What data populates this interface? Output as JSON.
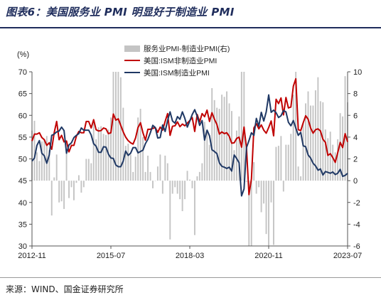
{
  "title": "图表6：美国服务业 PMI 明显好于制造业 PMI",
  "source": "来源：WIND、国金证券研究所",
  "chart_data": {
    "type": "bar+line",
    "left_unit_label": "(%)",
    "left_axis": {
      "min": 30,
      "max": 70,
      "step": 5
    },
    "right_axis": {
      "min": -6,
      "max": 10,
      "step": 2
    },
    "x_ticks": [
      "2012-11",
      "2015-07",
      "2018-03",
      "2020-11",
      "2023-07"
    ],
    "x_tick_index": [
      0,
      32,
      64,
      96,
      128
    ],
    "n_months": 129,
    "legend": [
      "服务业PMI-制造业PMI(右)",
      "美国:ISM非制造业PMI",
      "美国:ISM制造业PMI"
    ],
    "colors": {
      "bar": "#c4c4c4",
      "nonmfg": "#c00000",
      "mfg": "#1f3864"
    },
    "series": [
      {
        "name": "美国:ISM非制造业PMI",
        "axis": "left",
        "values": [
          54.1,
          55.7,
          55.7,
          56.0,
          54.9,
          54.4,
          53.1,
          53.7,
          52.2,
          56.0,
          58.6,
          54.4,
          55.4,
          53.9,
          54.1,
          51.6,
          53.1,
          53.1,
          55.2,
          56.3,
          56.0,
          56.0,
          58.6,
          58.6,
          57.1,
          59.0,
          56.7,
          56.4,
          56.5,
          57.1,
          56.9,
          55.8,
          56.0,
          60.3,
          58.9,
          59.2,
          57.7,
          56.2,
          55.0,
          54.2,
          53.7,
          53.4,
          54.8,
          57.2,
          58.3,
          56.0,
          54.3,
          56.8,
          56.8,
          57.0,
          57.2,
          56.1,
          57.3,
          56.6,
          58.6,
          60.4,
          55.4,
          57.5,
          57.6,
          58.5,
          57.4,
          58.0,
          57.6,
          58.2,
          58.8,
          59.5,
          56.3,
          60.2,
          58.5,
          60.4,
          59.7,
          61.2,
          58.6,
          60.6,
          59.1,
          57.9,
          55.7,
          56.2,
          55.8,
          56.0,
          55.2,
          53.6,
          53.7,
          54.7,
          55.0,
          52.7,
          57.3,
          52.5,
          41.8,
          45.4,
          57.1,
          58.1,
          56.9,
          57.8,
          56.6,
          55.9,
          57.2,
          58.7,
          55.3,
          63.7,
          62.7,
          64.0,
          60.1,
          64.1,
          61.7,
          61.9,
          66.7,
          68.4,
          56.7,
          56.5,
          58.3,
          59.9,
          59.1,
          57.1,
          55.9,
          56.7,
          56.9,
          56.4,
          54.5,
          53.8,
          50.8,
          51.2,
          50.3,
          49.2,
          51.4,
          53.8,
          52.6,
          55.8,
          53.9
        ]
      },
      {
        "name": "美国:ISM制造业PMI",
        "axis": "left",
        "values": [
          49.5,
          50.2,
          53.1,
          54.2,
          51.3,
          50.7,
          49.0,
          50.9,
          55.4,
          55.7,
          56.2,
          56.4,
          57.3,
          56.5,
          51.3,
          53.2,
          53.7,
          54.9,
          55.4,
          55.8,
          57.1,
          56.6,
          56.6,
          56.6,
          55.5,
          53.5,
          52.9,
          51.5,
          51.5,
          52.8,
          52.7,
          51.1,
          50.2,
          50.1,
          48.6,
          48.2,
          48.2,
          49.5,
          51.8,
          50.8,
          51.3,
          52.6,
          52.6,
          51.4,
          51.7,
          52.0,
          53.5,
          54.5,
          56.0,
          57.7,
          57.2,
          54.8,
          54.9,
          57.8,
          56.3,
          58.8,
          60.8,
          58.7,
          58.2,
          59.7,
          59.1,
          60.8,
          59.3,
          57.3,
          58.7,
          60.2,
          61.3,
          59.8,
          57.7,
          58.8,
          54.3,
          56.6,
          55.3,
          52.1,
          51.7,
          51.2,
          49.1,
          48.3,
          48.1,
          47.8,
          48.1,
          47.2,
          50.9,
          50.1,
          49.1,
          41.5,
          43.1,
          52.6,
          54.2,
          56.0,
          55.4,
          59.3,
          57.5,
          60.7,
          58.7,
          60.8,
          64.7,
          60.7,
          61.2,
          60.6,
          59.5,
          59.9,
          61.1,
          60.8,
          58.4,
          57.6,
          58.8,
          57.1,
          55.4,
          56.1,
          53.0,
          52.8,
          50.9,
          50.2,
          49.0,
          48.4,
          47.4,
          47.7,
          46.3,
          47.1,
          46.9,
          46.7,
          47.0,
          46.4,
          46.7,
          47.6,
          46.0,
          46.2,
          46.7
        ]
      },
      {
        "name": "服务业PMI-制造业PMI(右)",
        "axis": "right",
        "values": [
          4.6,
          5.5,
          2.6,
          1.8,
          3.6,
          3.7,
          4.1,
          2.8,
          -3.2,
          0.3,
          2.4,
          -2.0,
          -1.9,
          -2.6,
          2.8,
          -1.6,
          -0.6,
          -1.8,
          -0.2,
          0.5,
          -1.1,
          -0.6,
          2.0,
          2.0,
          1.6,
          5.5,
          3.8,
          4.9,
          5.0,
          4.3,
          4.2,
          4.7,
          5.8,
          10.2,
          10.3,
          11.0,
          9.5,
          6.7,
          3.2,
          3.4,
          2.4,
          0.8,
          2.2,
          5.8,
          6.6,
          4.0,
          0.8,
          2.3,
          0.8,
          -0.7,
          0.0,
          1.3,
          2.4,
          -1.2,
          2.3,
          1.6,
          -5.4,
          -1.2,
          -0.6,
          -1.2,
          -1.7,
          -2.8,
          -1.7,
          0.9,
          0.1,
          -0.7,
          -5.0,
          0.4,
          0.8,
          1.6,
          5.4,
          4.6,
          3.3,
          8.5,
          7.4,
          6.7,
          6.6,
          7.9,
          7.7,
          8.2,
          7.1,
          6.4,
          2.8,
          4.6,
          5.9,
          11.2,
          14.2,
          -0.1,
          -12.4,
          -10.6,
          1.7,
          -1.2,
          -0.6,
          -2.9,
          -2.1,
          -4.9,
          -7.5,
          -2.0,
          -5.9,
          3.1,
          3.2,
          4.1,
          -1.0,
          3.3,
          3.3,
          4.3,
          7.9,
          11.3,
          1.3,
          0.4,
          5.3,
          7.1,
          8.2,
          6.9,
          6.9,
          8.3,
          9.5,
          7.3,
          7.2,
          4.7,
          3.9,
          4.5,
          3.3,
          2.6,
          3.8,
          6.2,
          5.9,
          9.6,
          7.2
        ]
      }
    ]
  }
}
